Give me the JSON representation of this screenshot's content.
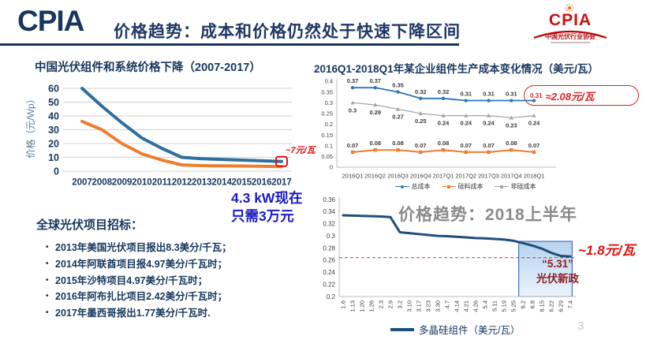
{
  "header": {
    "logo": "CPIA",
    "title": "价格趋势：成本和价格仍然处于快速下降区间",
    "right_logo": {
      "text": "CPIA",
      "cn": "中国光伏行业协会"
    }
  },
  "callout": {
    "line1": "4.3 kW现在",
    "line2": "只需3万元"
  },
  "bids": {
    "heading": "全球光伏项目招标：",
    "items": [
      "2013年美国光伏项目报出8.3美分/千瓦；",
      "2014年阿联酋项目报4.97美分/千瓦时；",
      "2015年沙特项目4.97美分/千瓦时；",
      "2016年阿布扎比项目2.42美分/千瓦时；",
      "2017年墨西哥报出1.77美分/千瓦时."
    ]
  },
  "page_number": "3",
  "colors": {
    "navy": "#17375E",
    "red_accent": "#E02020",
    "callout_blue": "#1A1AC8"
  },
  "chart_data": [
    {
      "id": "china-pv-price-decline",
      "type": "line",
      "title": "中国光伏组件和系统价格下降（2007-2017）",
      "ylabel": "价格（元/Wp）",
      "categories": [
        "2007",
        "2008",
        "2009",
        "2010",
        "2011",
        "2012",
        "2013",
        "2014",
        "2015",
        "2016",
        "2017"
      ],
      "ylim": [
        0,
        60
      ],
      "yticks": [
        "60",
        "50",
        "40",
        "30",
        "20",
        "10",
        "0"
      ],
      "grid": true,
      "series": [
        {
          "color": "#2D6F9E",
          "values": [
            60,
            47,
            35,
            24,
            16.5,
            10,
            9,
            8.5,
            8,
            7.5,
            7
          ]
        },
        {
          "color": "#ED7D31",
          "values": [
            36,
            30,
            20,
            12.5,
            8,
            4.5,
            4,
            3.8,
            3.7,
            3.5,
            3.3
          ]
        }
      ],
      "annotation": "~7元/瓦"
    },
    {
      "id": "module-production-cost",
      "type": "line",
      "title": "2016Q1-2018Q1年某企业组件生产成本变化情况（美元/瓦）",
      "categories": [
        "2016Q1",
        "2016Q2",
        "2016Q3",
        "2016Q4",
        "2017Q1",
        "2017Q2",
        "2017Q3",
        "2017Q4",
        "2018Q1"
      ],
      "ylim": [
        0,
        0.4
      ],
      "yticks": [
        "0.4",
        "0.35",
        "0.3",
        "0.25",
        "0.2",
        "0.15",
        "0.1",
        "0.05",
        "0"
      ],
      "grid": false,
      "legend_position": "bottom",
      "series": [
        {
          "name": "总成本",
          "color": "#2E75B6",
          "values": [
            0.37,
            0.37,
            0.35,
            0.32,
            0.32,
            0.31,
            0.31,
            0.31,
            0.31
          ],
          "labels": [
            "0.37",
            "0.37",
            "0.35",
            "0.32",
            "0.32",
            "0.31",
            "0.31",
            "0.31",
            ""
          ]
        },
        {
          "name": "硅料成本",
          "color": "#ED7D31",
          "values": [
            0.07,
            0.08,
            0.08,
            0.07,
            0.08,
            0.07,
            0.07,
            0.08,
            0.07
          ],
          "labels": [
            "0.07",
            "0.08",
            "0.08",
            "0.07",
            "0.08",
            "0.07",
            "0.07",
            "0.08",
            "0.07"
          ]
        },
        {
          "name": "非硅成本",
          "color": "#A6A6A6",
          "values": [
            0.3,
            0.29,
            0.27,
            0.25,
            0.24,
            0.24,
            0.24,
            0.23,
            0.24
          ],
          "labels": [
            "0.3",
            "0.29",
            "0.27",
            "0.25",
            "0.24",
            "0.24",
            "0.24",
            "0.23",
            "0.24"
          ]
        }
      ],
      "annotation": {
        "value": "0.31",
        "text": "≈2.08元/瓦"
      }
    },
    {
      "id": "price-trend-2018h1",
      "type": "line",
      "title": "价格趋势：2018上半年",
      "categories": [
        "1.6",
        "1.13",
        "1.20",
        "1.26",
        "2.3",
        "2.9",
        "3.2",
        "3.10",
        "3.17",
        "3.23",
        "3.30",
        "4.7",
        "4.14",
        "4.21",
        "4.26",
        "5.4",
        "5.11",
        "5.19",
        "5.25",
        "6.2",
        "6.8",
        "6.15",
        "6.22",
        "6.29",
        "7.4"
      ],
      "ylim": [
        0.2,
        0.36
      ],
      "yticks": [
        "0.36",
        "0.34",
        "0.32",
        "0.3",
        "0.28",
        "0.26",
        "0.24",
        "0.22",
        "0.2"
      ],
      "grid": false,
      "hline": 0.264,
      "series": [
        {
          "name": "多晶硅组件（美元/瓦）",
          "color": "#1F4E79",
          "values": [
            0.334,
            0.3335,
            0.333,
            0.3325,
            0.332,
            0.331,
            0.306,
            0.3045,
            0.303,
            0.3015,
            0.3,
            0.2995,
            0.2985,
            0.2975,
            0.2965,
            0.296,
            0.295,
            0.294,
            0.292,
            0.288,
            0.284,
            0.279,
            0.272,
            0.267,
            0.266
          ]
        }
      ],
      "highlight": {
        "line1": "“5.31”",
        "line2": "光伏新政"
      },
      "annotation": "~1.8元/瓦"
    }
  ]
}
